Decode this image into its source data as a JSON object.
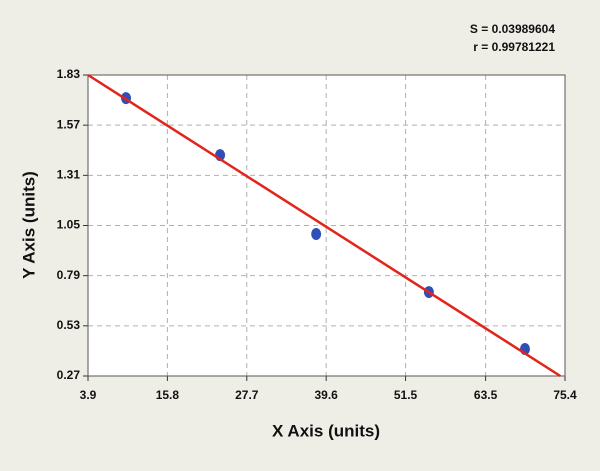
{
  "chart_data": {
    "type": "scatter",
    "x_label": "X Axis (units)",
    "y_label": "Y Axis (units)",
    "annotations": [
      "S = 0.03989604",
      "r = 0.99781221"
    ],
    "series": [
      {
        "x": [
          9.6,
          23.7,
          38.1,
          55.0,
          69.4
        ],
        "values": [
          1.71,
          1.415,
          1.006,
          0.705,
          0.41
        ],
        "color": "#2f4fb8"
      },
      {
        "type": "line",
        "x": [
          3.9,
          74.7
        ],
        "values": [
          1.83,
          0.27
        ],
        "color": "#e3241b"
      }
    ],
    "xlim": [
      3.9,
      75.4
    ],
    "xticks": [
      3.9,
      15.8,
      27.7,
      39.6,
      51.5,
      63.5,
      75.4
    ],
    "ylim": [
      0.27,
      1.83
    ],
    "yticks": [
      0.27,
      0.53,
      0.79,
      1.05,
      1.31,
      1.57,
      1.83
    ],
    "grid": true
  }
}
